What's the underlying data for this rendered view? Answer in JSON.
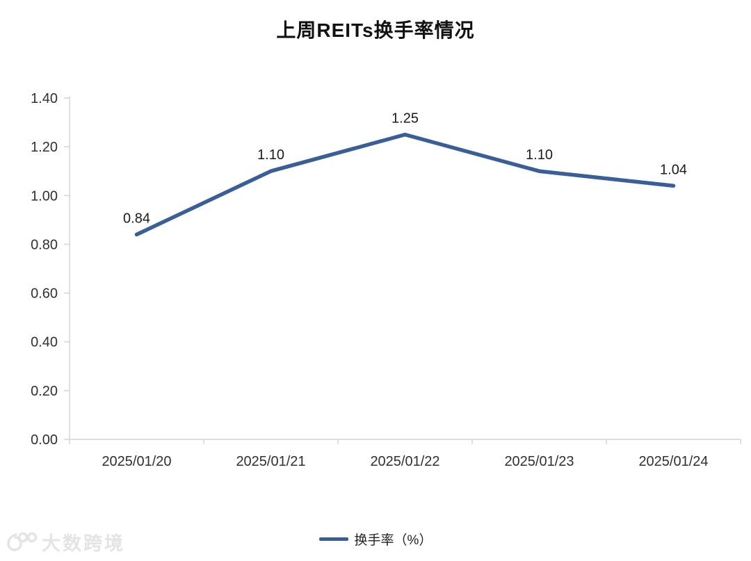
{
  "chart_data": {
    "type": "line",
    "title": "上周REITs换手率情况",
    "categories": [
      "2025/01/20",
      "2025/01/21",
      "2025/01/22",
      "2025/01/23",
      "2025/01/24"
    ],
    "series": [
      {
        "name": "换手率（%）",
        "values": [
          0.84,
          1.1,
          1.25,
          1.1,
          1.04
        ]
      }
    ],
    "data_labels": [
      "0.84",
      "1.10",
      "1.25",
      "1.10",
      "1.04"
    ],
    "xlabel": "",
    "ylabel": "",
    "ylim": [
      0.0,
      1.4
    ],
    "ytick_labels": [
      "0.00",
      "0.20",
      "0.40",
      "0.60",
      "0.80",
      "1.00",
      "1.20",
      "1.40"
    ],
    "grid": false,
    "legend_position": "bottom",
    "line_color": "#3A5E97",
    "axis_color": "#D6D6D6",
    "tick_label_color": "#303030",
    "data_label_color": "#1A1A1A"
  },
  "watermark": {
    "text": "大数跨境"
  }
}
